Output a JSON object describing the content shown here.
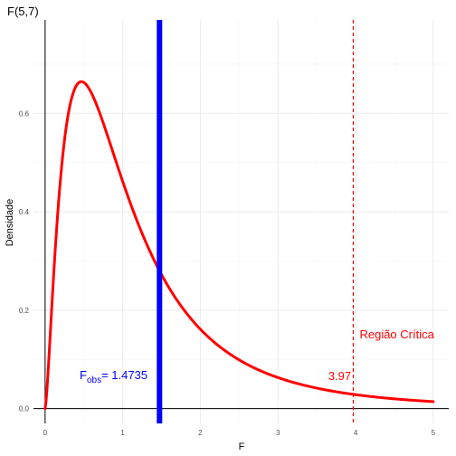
{
  "chart_data": {
    "type": "line",
    "title": "F(5,7)",
    "xlabel": "F",
    "ylabel": "Densidade",
    "xlim": [
      -0.15,
      5.2
    ],
    "ylim": [
      -0.03,
      0.79
    ],
    "x_ticks": [
      0,
      1,
      2,
      3,
      4,
      5
    ],
    "x_tick_labels": [
      "0",
      "1",
      "2",
      "3",
      "4",
      "5"
    ],
    "y_ticks": [
      0.0,
      0.2,
      0.4,
      0.6
    ],
    "y_tick_labels": [
      "0.0",
      "0.2",
      "0.4",
      "0.6"
    ],
    "grid": true,
    "series": [
      {
        "df1": 5,
        "df2": 7,
        "x_range": [
          0,
          5
        ],
        "color": "#ff0000",
        "values": [
          [
            0.0,
            0.0
          ],
          [
            0.25,
            0.59
          ],
          [
            0.43,
            0.66
          ],
          [
            0.5,
            0.66
          ],
          [
            0.75,
            0.6
          ],
          [
            1.0,
            0.49
          ],
          [
            1.25,
            0.38
          ],
          [
            1.4735,
            0.29
          ],
          [
            1.75,
            0.22
          ],
          [
            2.0,
            0.17
          ],
          [
            2.5,
            0.1
          ],
          [
            3.0,
            0.06
          ],
          [
            3.5,
            0.04
          ],
          [
            3.97,
            0.025
          ],
          [
            4.5,
            0.018
          ],
          [
            5.0,
            0.013
          ]
        ]
      }
    ],
    "annotations": {
      "observed": {
        "x": 1.4735,
        "label_main": "F",
        "label_sub": "obs",
        "label_rest": "= 1.4735",
        "color": "#0000ff"
      },
      "critical": {
        "x": 3.97,
        "label": "3.97",
        "region_label": "Região Crítica",
        "color": "#ff0000"
      }
    }
  }
}
